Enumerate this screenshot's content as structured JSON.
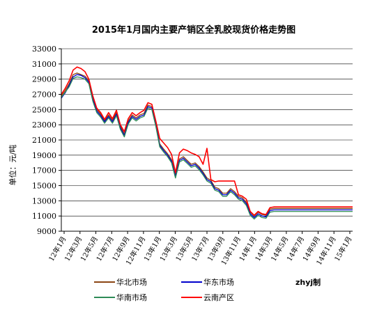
{
  "chart_data": {
    "type": "line",
    "title": "2015年1月国内主要产销区全乳胶现货价格走势图",
    "ylabel": "单位：元/吨",
    "xlabel": "",
    "ylim": [
      9000,
      33000
    ],
    "y_ticks": [
      9000,
      11000,
      13000,
      15000,
      17000,
      19000,
      21000,
      23000,
      25000,
      27000,
      29000,
      31000,
      33000
    ],
    "x_tick_labels": [
      "12年1月",
      "12年3月",
      "12年5月",
      "12年7月",
      "12年9月",
      "12年11月",
      "13年1月",
      "13年3月",
      "13年5月",
      "13年7月",
      "13年9月",
      "13年11月",
      "14年1月",
      "14年3月",
      "14年5月",
      "14年7月",
      "14年9月",
      "14年11月",
      "15年1月"
    ],
    "x_range": [
      0,
      37
    ],
    "grid": "horizontal",
    "legend_position": "bottom",
    "credit": "zhyj制",
    "series": [
      {
        "name": "华北市场",
        "color": "#8B4513",
        "x": [
          0,
          0.5,
          1,
          1.5,
          2,
          2.5,
          3,
          3.5,
          4,
          4.5,
          5,
          5.5,
          6,
          6.5,
          7,
          7.5,
          8,
          8.5,
          9,
          9.5,
          10,
          10.5,
          11,
          11.5,
          12,
          12.5,
          13,
          13.5,
          14,
          14.5,
          15,
          15.5,
          16,
          16.5,
          17,
          17.5,
          18,
          18.5,
          19,
          19.5,
          20,
          20.5,
          21,
          21.5,
          22,
          22.5,
          23,
          23.5,
          24,
          24.5,
          25,
          25.5,
          26,
          26.5,
          27,
          27.5,
          28,
          28.5,
          29,
          29.5,
          30,
          30.5,
          31,
          31.5,
          32,
          32.5,
          33,
          33.5,
          34,
          34.5,
          35,
          35.5,
          36,
          36.5,
          37
        ],
        "values": [
          26800,
          27500,
          28400,
          29600,
          29800,
          29600,
          29400,
          28800,
          26500,
          25000,
          24400,
          23500,
          24300,
          23600,
          24600,
          22800,
          21800,
          23500,
          24300,
          23900,
          24300,
          24500,
          25600,
          25400,
          23200,
          20500,
          19800,
          19200,
          18400,
          16400,
          18500,
          18800,
          18300,
          17800,
          18000,
          17500,
          16800,
          16000,
          15700,
          14800,
          14600,
          14000,
          14000,
          14600,
          14200,
          13600,
          13400,
          12800,
          11500,
          11000,
          11500,
          11200,
          11100,
          11900,
          12000,
          12000,
          12000,
          12000,
          12000,
          12000,
          12000,
          12000,
          12000,
          12000,
          12000,
          12000,
          12000,
          12000,
          12000,
          12000,
          12000,
          12000,
          12000,
          12000,
          12000
        ]
      },
      {
        "name": "华东市场",
        "color": "#0000CC",
        "x": [
          0,
          0.5,
          1,
          1.5,
          2,
          2.5,
          3,
          3.5,
          4,
          4.5,
          5,
          5.5,
          6,
          6.5,
          7,
          7.5,
          8,
          8.5,
          9,
          9.5,
          10,
          10.5,
          11,
          11.5,
          12,
          12.5,
          13,
          13.5,
          14,
          14.5,
          15,
          15.5,
          16,
          16.5,
          17,
          17.5,
          18,
          18.5,
          19,
          19.5,
          20,
          20.5,
          21,
          21.5,
          22,
          22.5,
          23,
          23.5,
          24,
          24.5,
          25,
          25.5,
          26,
          26.5,
          27,
          27.5,
          28,
          28.5,
          29,
          29.5,
          30,
          30.5,
          31,
          31.5,
          32,
          32.5,
          33,
          33.5,
          34,
          34.5,
          35,
          35.5,
          36,
          36.5,
          37
        ],
        "values": [
          26500,
          27200,
          28200,
          29300,
          29600,
          29500,
          29200,
          28600,
          26300,
          24800,
          24200,
          23400,
          24100,
          23400,
          24400,
          22600,
          21600,
          23300,
          24100,
          23700,
          24100,
          24300,
          25400,
          25200,
          23000,
          20300,
          19600,
          19000,
          18200,
          16200,
          18300,
          18600,
          18100,
          17600,
          17800,
          17300,
          16600,
          15800,
          15500,
          14600,
          14400,
          13800,
          13800,
          14400,
          14000,
          13400,
          13200,
          12600,
          11300,
          10800,
          11300,
          11000,
          10900,
          11700,
          11800,
          11800,
          11800,
          11800,
          11800,
          11800,
          11800,
          11800,
          11800,
          11800,
          11800,
          11800,
          11800,
          11800,
          11800,
          11800,
          11800,
          11800,
          11800,
          11800,
          11800
        ]
      },
      {
        "name": "华南市场",
        "color": "#2E8B57",
        "x": [
          0,
          0.5,
          1,
          1.5,
          2,
          2.5,
          3,
          3.5,
          4,
          4.5,
          5,
          5.5,
          6,
          6.5,
          7,
          7.5,
          8,
          8.5,
          9,
          9.5,
          10,
          10.5,
          11,
          11.5,
          12,
          12.5,
          13,
          13.5,
          14,
          14.5,
          15,
          15.5,
          16,
          16.5,
          17,
          17.5,
          18,
          18.5,
          19,
          19.5,
          20,
          20.5,
          21,
          21.5,
          22,
          22.5,
          23,
          23.5,
          24,
          24.5,
          25,
          25.5,
          26,
          26.5,
          27,
          27.5,
          28,
          28.5,
          29,
          29.5,
          30,
          30.5,
          31,
          31.5,
          32,
          32.5,
          33,
          33.5,
          34,
          34.5,
          35,
          35.5,
          36,
          36.5,
          37
        ],
        "values": [
          26600,
          27300,
          28000,
          29100,
          29300,
          29200,
          29000,
          28400,
          26100,
          24600,
          24000,
          23200,
          23900,
          23200,
          24200,
          22400,
          21400,
          23100,
          23900,
          23500,
          23900,
          24100,
          25200,
          25000,
          22800,
          20100,
          19400,
          18800,
          18000,
          16000,
          18100,
          18400,
          17900,
          17400,
          17600,
          17100,
          16400,
          15600,
          15300,
          14400,
          14200,
          13600,
          13600,
          14200,
          13800,
          13200,
          13000,
          12400,
          11100,
          10600,
          11100,
          10800,
          10700,
          11500,
          11600,
          11600,
          11600,
          11600,
          11600,
          11600,
          11600,
          11600,
          11600,
          11600,
          11600,
          11600,
          11600,
          11600,
          11600,
          11600,
          11600,
          11600,
          11600,
          11600,
          11600
        ]
      },
      {
        "name": "云南产区",
        "color": "#FF0000",
        "x": [
          0,
          0.5,
          1,
          1.5,
          2,
          2.5,
          3,
          3.5,
          4,
          4.5,
          5,
          5.5,
          6,
          6.5,
          7,
          7.5,
          8,
          8.5,
          9,
          9.5,
          10,
          10.5,
          11,
          11.5,
          12,
          12.5,
          13,
          13.5,
          14,
          14.5,
          15,
          15.5,
          16,
          16.5,
          17,
          17.5,
          18,
          18.5,
          19,
          19.5,
          20,
          20.5,
          21,
          21.5,
          22,
          22.5,
          23,
          23.5,
          24,
          24.5,
          25,
          25.5,
          26,
          26.5,
          27,
          27.5,
          28,
          28.5,
          29,
          29.5,
          30,
          30.5,
          31,
          31.5,
          32,
          32.5,
          33,
          33.5,
          34,
          34.5,
          35,
          35.5,
          36,
          36.5,
          37
        ],
        "values": [
          27000,
          27800,
          28800,
          30200,
          30600,
          30400,
          30000,
          29000,
          26800,
          25200,
          24600,
          23700,
          24600,
          23800,
          24900,
          23000,
          22100,
          23800,
          24600,
          24200,
          24600,
          24900,
          25900,
          25700,
          23500,
          21200,
          20600,
          20000,
          19100,
          16700,
          19300,
          19800,
          19600,
          19300,
          19100,
          18800,
          17800,
          19900,
          15800,
          15500,
          15600,
          15600,
          15600,
          15600,
          15600,
          13800,
          13600,
          13200,
          11600,
          11100,
          11600,
          11300,
          11200,
          12100,
          12200,
          12200,
          12200,
          12200,
          12200,
          12200,
          12200,
          12200,
          12200,
          12200,
          12200,
          12200,
          12200,
          12200,
          12200,
          12200,
          12200,
          12200,
          12200,
          12200,
          12200
        ]
      }
    ]
  }
}
